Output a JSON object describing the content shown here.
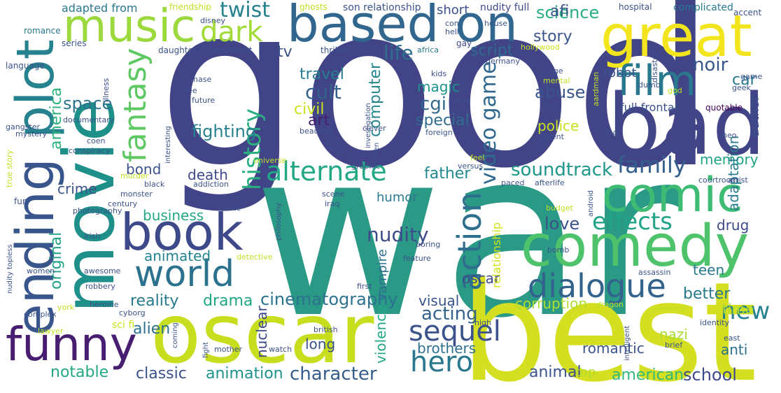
{
  "words": [
    {
      "text": "good",
      "c": "#414487"
    },
    {
      "text": "war",
      "c": "#2a9a86"
    },
    {
      "text": "oscar",
      "c": "#c7de1e"
    },
    {
      "text": "best",
      "c": "#d3df20"
    },
    {
      "text": "movie",
      "c": "#1f8f8a"
    },
    {
      "text": "based on",
      "c": "#31678e"
    },
    {
      "text": "great",
      "c": "#f2e51d"
    },
    {
      "text": "bad",
      "c": "#414487"
    },
    {
      "text": "comedy",
      "c": "#4ec36b"
    },
    {
      "text": "comic",
      "c": "#3fbc73"
    },
    {
      "text": "book",
      "c": "#3e4989"
    },
    {
      "text": "funny",
      "c": "#481f70"
    },
    {
      "text": "ending",
      "c": "#39568c"
    },
    {
      "text": "plot",
      "c": "#26828e"
    },
    {
      "text": "music",
      "c": "#9bd93c"
    },
    {
      "text": "film",
      "c": "#2a788e"
    },
    {
      "text": "world",
      "c": "#2c718e"
    },
    {
      "text": "dialogue",
      "c": "#33638d"
    },
    {
      "text": "hero",
      "c": "#2a788e"
    },
    {
      "text": "alternate",
      "c": "#22a884"
    },
    {
      "text": "action",
      "c": "#2e6f8e"
    },
    {
      "text": "dark",
      "c": "#a2da37"
    },
    {
      "text": "fantasy",
      "c": "#5ec962"
    },
    {
      "text": "sequel",
      "c": "#3b528b"
    },
    {
      "text": "effects",
      "c": "#20a386"
    },
    {
      "text": "family",
      "c": "#355f8d"
    },
    {
      "text": "history",
      "c": "#29af7f"
    },
    {
      "text": "soundtrack",
      "c": "#1f968b"
    },
    {
      "text": "video game",
      "c": "#31688e"
    },
    {
      "text": "cinematography",
      "c": "#2c728e"
    },
    {
      "text": "character",
      "c": "#355e8d"
    },
    {
      "text": "animation",
      "c": "#20928c"
    },
    {
      "text": "classic",
      "c": "#3b528b"
    },
    {
      "text": "new",
      "c": "#26828e"
    },
    {
      "text": "drama",
      "c": "#22a785"
    },
    {
      "text": "reality",
      "c": "#2a788e"
    },
    {
      "text": "acting",
      "c": "#33638d"
    },
    {
      "text": "nudity",
      "c": "#3e4c8a"
    },
    {
      "text": "brothers",
      "c": "#2d708e"
    },
    {
      "text": "love",
      "c": "#3b528b"
    },
    {
      "text": "american",
      "c": "#35b779"
    },
    {
      "text": "school",
      "c": "#3e4989"
    },
    {
      "text": "animal",
      "c": "#3b528b"
    },
    {
      "text": "notable",
      "c": "#22a884"
    },
    {
      "text": "twist",
      "c": "#26828e"
    },
    {
      "text": "science",
      "c": "#29af7f"
    },
    {
      "text": "life",
      "c": "#2e6e8e"
    },
    {
      "text": "story",
      "c": "#3a548c"
    },
    {
      "text": "script",
      "c": "#2f6b8e"
    },
    {
      "text": "noir",
      "c": "#39568c"
    },
    {
      "text": "car",
      "c": "#2a788e"
    },
    {
      "text": "cult",
      "c": "#33638d"
    },
    {
      "text": "cgi",
      "c": "#30698e"
    },
    {
      "text": "art",
      "c": "#481f70"
    },
    {
      "text": "abuse",
      "c": "#39558c"
    },
    {
      "text": "space",
      "c": "#2c728e"
    },
    {
      "text": "america",
      "c": "#2db27d"
    },
    {
      "text": "tv",
      "c": "#3b528b"
    },
    {
      "text": "afi",
      "c": "#3b528b"
    },
    {
      "text": "special",
      "c": "#2f6c8e"
    },
    {
      "text": "magic",
      "c": "#20928c"
    },
    {
      "text": "travel",
      "c": "#287d8e"
    },
    {
      "text": "computer",
      "c": "#25858e"
    },
    {
      "text": "civil",
      "c": "#cae11f"
    },
    {
      "text": "police",
      "c": "#cae11f"
    },
    {
      "text": "fighting",
      "c": "#26828e"
    },
    {
      "text": "bond",
      "c": "#3b528b"
    },
    {
      "text": "death",
      "c": "#3e4989"
    },
    {
      "text": "father",
      "c": "#23898e"
    },
    {
      "text": "crime",
      "c": "#3b528b"
    },
    {
      "text": "business",
      "c": "#22a884"
    },
    {
      "text": "original",
      "c": "#20a386"
    },
    {
      "text": "animated",
      "c": "#26828e"
    },
    {
      "text": "memory",
      "c": "#20a386"
    },
    {
      "text": "adaptation",
      "c": "#287c8e"
    },
    {
      "text": "author",
      "c": "#3b528b"
    },
    {
      "text": "drug",
      "c": "#3e4989"
    },
    {
      "text": "teen",
      "c": "#2a788e"
    },
    {
      "text": "better",
      "c": "#2a788e"
    },
    {
      "text": "time",
      "c": "#b5de2b"
    },
    {
      "text": "anti",
      "c": "#2d708e"
    },
    {
      "text": "nazi",
      "c": "#a8db34"
    },
    {
      "text": "romantic",
      "c": "#3b528b"
    },
    {
      "text": "corruption",
      "c": "#b0dd2f"
    },
    {
      "text": "oscar",
      "c": "#3e4989"
    },
    {
      "text": "alien",
      "c": "#2c728e"
    },
    {
      "text": "long",
      "c": "#3b528b"
    },
    {
      "text": "nuclear",
      "c": "#3e4989"
    },
    {
      "text": "violence",
      "c": "#22a785"
    },
    {
      "text": "visual",
      "c": "#3a548c"
    },
    {
      "text": "humor",
      "c": "#2a788e"
    },
    {
      "text": "vampire",
      "c": "#2e6f8e"
    },
    {
      "text": "relationship",
      "c": "#d2e21b"
    },
    {
      "text": "top",
      "c": "#b5de2b"
    },
    {
      "text": "sci fi",
      "c": "#cae11f"
    },
    {
      "text": "adapted from",
      "c": "#2a788e"
    },
    {
      "text": "son relationship",
      "c": "#3b528b"
    },
    {
      "text": "short",
      "c": "#3b528b"
    },
    {
      "text": "nudity full",
      "c": "#3e4989"
    },
    {
      "text": "complicated",
      "c": "#2a788e"
    },
    {
      "text": "accent",
      "c": "#3b528b"
    },
    {
      "text": "robot",
      "c": "#3b528b"
    },
    {
      "text": "full frontal",
      "c": "#3b528b"
    },
    {
      "text": "quotable",
      "c": "#440154"
    },
    {
      "text": "gay",
      "c": "#3e4989"
    },
    {
      "text": "hollywood",
      "c": "#cae11f"
    },
    {
      "text": "africa",
      "c": "#287d8e"
    },
    {
      "text": "friendship",
      "c": "#c2df23"
    },
    {
      "text": "ghosts",
      "c": "#c2df23"
    },
    {
      "text": "con",
      "c": "#3b528b"
    },
    {
      "text": "hell",
      "c": "#3b528b"
    },
    {
      "text": "house",
      "c": "#3b528b"
    },
    {
      "text": "disney",
      "c": "#3b528b"
    },
    {
      "text": "romance",
      "c": "#2a788e"
    },
    {
      "text": "series",
      "c": "#3b528b"
    },
    {
      "text": "excellent",
      "c": "#3b528b"
    },
    {
      "text": "daughter",
      "c": "#3b528b"
    },
    {
      "text": "thriller",
      "c": "#3b528b"
    },
    {
      "text": "language",
      "c": "#3b528b"
    },
    {
      "text": "illness",
      "c": "#3b528b"
    },
    {
      "text": "kids",
      "c": "#3b528b"
    },
    {
      "text": "non",
      "c": "#3b528b"
    },
    {
      "text": "germany",
      "c": "#3b528b"
    },
    {
      "text": "age",
      "c": "#3b528b"
    },
    {
      "text": "mental",
      "c": "#c2df23"
    },
    {
      "text": "disaster",
      "c": "#3b528b"
    },
    {
      "text": "dumb",
      "c": "#3b528b"
    },
    {
      "text": "loss",
      "c": "#3b528b"
    },
    {
      "text": "god",
      "c": "#c2df23"
    },
    {
      "text": "aardman",
      "c": "#c2df23"
    },
    {
      "text": "game",
      "c": "#3b528b"
    },
    {
      "text": "geek",
      "c": "#3b528b"
    },
    {
      "text": "chase",
      "c": "#3b528b"
    },
    {
      "text": "free",
      "c": "#3b528b"
    },
    {
      "text": "future",
      "c": "#3b528b"
    },
    {
      "text": "documentary",
      "c": "#3b528b"
    },
    {
      "text": "gangster",
      "c": "#3b528b"
    },
    {
      "text": "mystery",
      "c": "#3b528b"
    },
    {
      "text": "coen",
      "c": "#3b528b"
    },
    {
      "text": "conspiracy",
      "c": "#3b528b"
    },
    {
      "text": "true story",
      "c": "#c2df23"
    },
    {
      "text": "beautiful",
      "c": "#3b528b"
    },
    {
      "text": "clever",
      "c": "#3b528b"
    },
    {
      "text": "foreign",
      "c": "#3b528b"
    },
    {
      "text": "dog",
      "c": "#3b528b"
    },
    {
      "text": "neo",
      "c": "#3b528b"
    },
    {
      "text": "silent",
      "c": "#3b528b"
    },
    {
      "text": "investigation",
      "c": "#3b528b"
    },
    {
      "text": "interesting",
      "c": "#3b528b"
    },
    {
      "text": "universe",
      "c": "#c2df23"
    },
    {
      "text": "murder",
      "c": "#c2df23"
    },
    {
      "text": "black",
      "c": "#3b528b"
    },
    {
      "text": "addiction",
      "c": "#3b528b"
    },
    {
      "text": "graphic",
      "c": "#3b528b"
    },
    {
      "text": "men",
      "c": "#3b528b"
    },
    {
      "text": "feel",
      "c": "#c2df23"
    },
    {
      "text": "versus",
      "c": "#3b528b"
    },
    {
      "text": "courtroom",
      "c": "#3b528b"
    },
    {
      "text": "artist",
      "c": "#3b528b"
    },
    {
      "text": "paced",
      "c": "#3b528b"
    },
    {
      "text": "afterlife",
      "c": "#3b528b"
    },
    {
      "text": "fun",
      "c": "#3b528b"
    },
    {
      "text": "monster",
      "c": "#3b528b"
    },
    {
      "text": "century",
      "c": "#3b528b"
    },
    {
      "text": "philosophy",
      "c": "#3b528b"
    },
    {
      "text": "scene",
      "c": "#3b528b"
    },
    {
      "text": "iraq",
      "c": "#3b528b"
    },
    {
      "text": "cute",
      "c": "#3b528b"
    },
    {
      "text": "android",
      "c": "#3b528b"
    },
    {
      "text": "budget",
      "c": "#c2df23"
    },
    {
      "text": "photography",
      "c": "#3b528b"
    },
    {
      "text": "irish",
      "c": "#3b528b"
    },
    {
      "text": "nudity topless",
      "c": "#3b528b"
    },
    {
      "text": "women",
      "c": "#3b528b"
    },
    {
      "text": "awesome",
      "c": "#3b528b"
    },
    {
      "text": "robbery",
      "c": "#3b528b"
    },
    {
      "text": "detective",
      "c": "#c2df23"
    },
    {
      "text": "heroine",
      "c": "#3b528b"
    },
    {
      "text": "boring",
      "c": "#3b528b"
    },
    {
      "text": "feature",
      "c": "#3b528b"
    },
    {
      "text": "bomb",
      "c": "#3b528b"
    },
    {
      "text": "assassin",
      "c": "#3b528b"
    },
    {
      "text": "first",
      "c": "#3b528b"
    },
    {
      "text": "york",
      "c": "#c2df23"
    },
    {
      "text": "cyborg",
      "c": "#3b528b"
    },
    {
      "text": "dragon",
      "c": "#c2df23"
    },
    {
      "text": "amazing",
      "c": "#c2df23"
    },
    {
      "text": "hospital",
      "c": "#3b528b"
    },
    {
      "text": "complex",
      "c": "#3b528b"
    },
    {
      "text": "lawyer",
      "c": "#c2df23"
    },
    {
      "text": "british",
      "c": "#3b528b"
    },
    {
      "text": "high",
      "c": "#3b528b"
    },
    {
      "text": "intelligent",
      "c": "#3b528b"
    },
    {
      "text": "identity",
      "c": "#3b528b"
    },
    {
      "text": "brief",
      "c": "#3b528b"
    },
    {
      "text": "east",
      "c": "#3b528b"
    },
    {
      "text": "coming",
      "c": "#3b528b"
    },
    {
      "text": "fight",
      "c": "#3b528b"
    },
    {
      "text": "mother",
      "c": "#3b528b"
    },
    {
      "text": "watch",
      "c": "#3b528b"
    }
  ]
}
